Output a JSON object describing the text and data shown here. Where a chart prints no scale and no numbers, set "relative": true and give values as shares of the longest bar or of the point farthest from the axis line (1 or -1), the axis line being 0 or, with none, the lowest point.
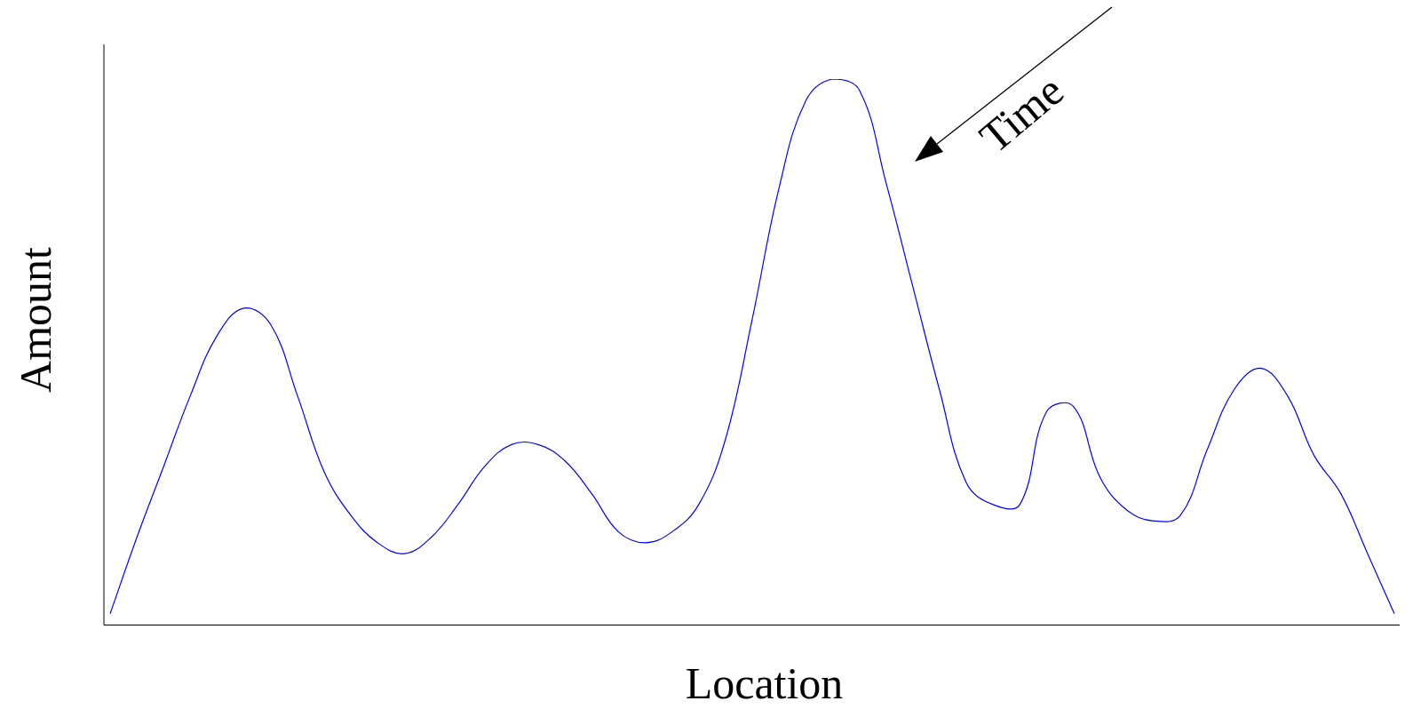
{
  "chart_data": {
    "type": "line",
    "relative": true,
    "xlabel": "Location",
    "ylabel": "Amount",
    "annotations": [
      "Time"
    ],
    "categories": [
      null,
      null,
      null,
      null,
      null,
      null,
      null,
      null,
      null,
      null,
      null,
      null,
      null,
      null,
      null,
      null,
      null,
      null,
      null,
      null,
      null,
      null,
      null,
      null,
      null,
      null,
      null,
      null,
      null,
      null,
      null,
      null,
      null,
      null,
      null,
      null,
      null,
      null,
      null,
      null,
      null,
      null,
      null,
      null,
      null,
      null,
      null,
      null,
      null
    ],
    "series": [
      {
        "color": "#0000ff",
        "values": [
          0.02,
          0.16,
          0.29,
          0.42,
          0.53,
          0.58,
          0.55,
          0.42,
          0.28,
          0.2,
          0.15,
          0.13,
          0.16,
          0.22,
          0.29,
          0.33,
          0.33,
          0.3,
          0.24,
          0.17,
          0.15,
          0.17,
          0.22,
          0.34,
          0.56,
          0.8,
          0.96,
          1,
          0.98,
          0.81,
          0.62,
          0.43,
          0.26,
          0.22,
          0.22,
          0.39,
          0.4,
          0.27,
          0.21,
          0.19,
          0.2,
          0.32,
          0.43,
          0.47,
          0.42,
          0.31,
          0.24,
          0.13,
          0.02
        ]
      }
    ],
    "marker": "none",
    "line_style": "solid",
    "grid": false,
    "legend": false
  }
}
